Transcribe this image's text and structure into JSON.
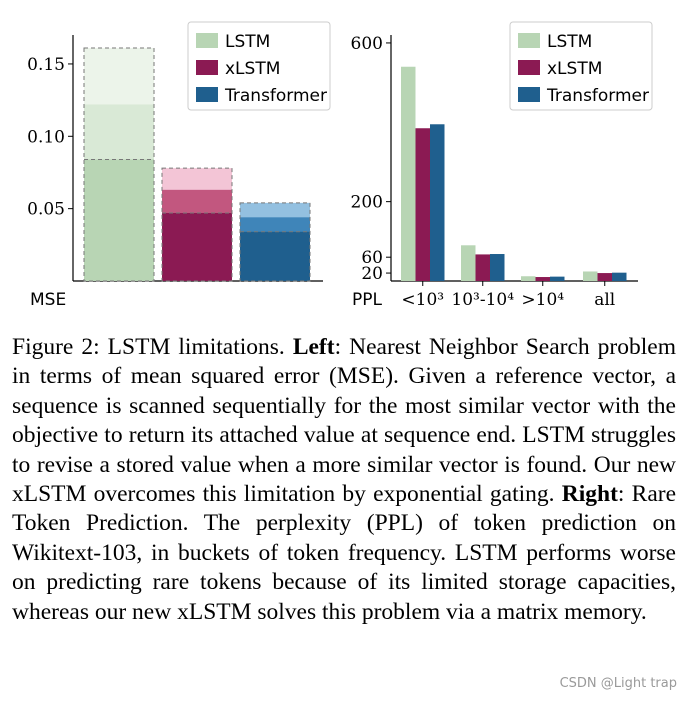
{
  "colors": {
    "lstm": "#b8d5b4",
    "xlstm": "#8b1a53",
    "transformer": "#1f5f8e"
  },
  "chart_data": [
    {
      "type": "bar",
      "id": "left",
      "ylabel": "MSE",
      "ylim": [
        0,
        0.17
      ],
      "yticks": [
        0.05,
        0.1,
        0.15
      ],
      "ytick_labels": [
        "0.05",
        "0.10",
        "0.15"
      ],
      "legend": [
        "LSTM",
        "xLSTM",
        "Transformer"
      ],
      "legend_placement": "top-right",
      "series": [
        {
          "name": "LSTM",
          "color": "#b8d5b4",
          "light": "#d9e9d6",
          "lighter": "#ecf4ea",
          "segments": [
            0.084,
            0.122,
            0.161
          ]
        },
        {
          "name": "xLSTM",
          "color": "#8b1a53",
          "light": "#c2577f",
          "lighter": "#f3c5d6",
          "segments": [
            0.047,
            0.063,
            0.078
          ]
        },
        {
          "name": "Transformer",
          "color": "#1f5f8e",
          "light": "#3f85b9",
          "lighter": "#93c0e0",
          "segments": [
            0.034,
            0.044,
            0.054
          ]
        }
      ]
    },
    {
      "type": "bar",
      "id": "right",
      "ylabel": "PPL",
      "ylim": [
        0,
        620
      ],
      "yticks": [
        20,
        60,
        200,
        600
      ],
      "ytick_labels": [
        "20",
        "60",
        "200",
        "600"
      ],
      "categories": [
        "<10³",
        "10³-10⁴",
        ">10⁴",
        "all"
      ],
      "legend": [
        "LSTM",
        "xLSTM",
        "Transformer"
      ],
      "legend_placement": "top-right",
      "series": [
        {
          "name": "LSTM",
          "color": "#b8d5b4",
          "values": [
            540,
            90,
            12,
            24
          ]
        },
        {
          "name": "xLSTM",
          "color": "#8b1a53",
          "values": [
            385,
            67,
            10,
            20
          ]
        },
        {
          "name": "Transformer",
          "color": "#1f5f8e",
          "values": [
            395,
            68,
            11,
            21
          ]
        }
      ]
    }
  ],
  "caption": {
    "label": "Figure 2: LSTM limitations.",
    "left_head": "Left",
    "left_text": ": Nearest Neighbor Search problem in terms of mean squared error (MSE). Given a reference vector, a sequence is scanned sequentially for the most similar vector with the objective to return its attached value at sequence end. LSTM struggles to revise a stored value when a more similar vector is found. Our new xLSTM overcomes this limitation by exponential gating.",
    "right_head": "Right",
    "right_text": ": Rare Token Prediction. The perplexity (PPL) of token prediction on Wikitext-103, in buckets of token frequency. LSTM performs worse on predicting rare tokens because of its limited storage capacities, whereas our new xLSTM solves this problem via a matrix memory."
  },
  "watermark": "CSDN @Light trap"
}
